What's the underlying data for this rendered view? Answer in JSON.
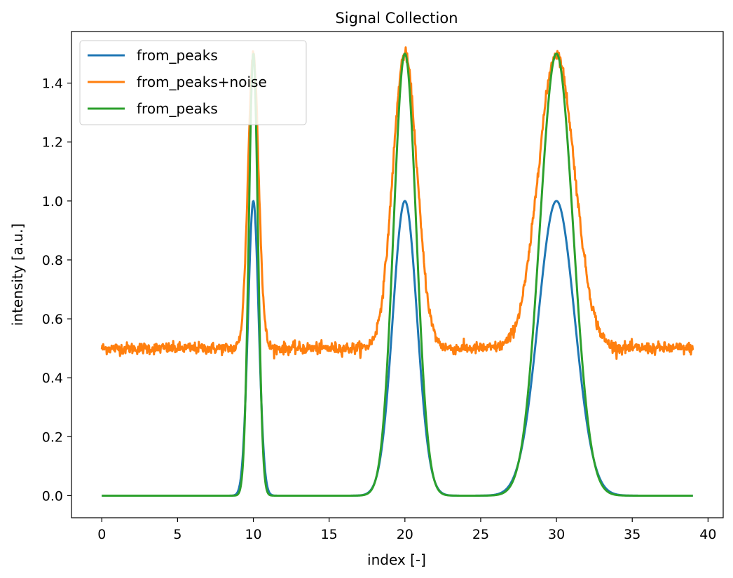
{
  "chart_data": {
    "type": "line",
    "title": "Signal Collection",
    "xlabel": "index [-]",
    "ylabel": "intensity [a.u.]",
    "xlim": [
      -2,
      41
    ],
    "ylim": [
      -0.075,
      1.575
    ],
    "x_range": [
      0,
      39
    ],
    "xticks": [
      0,
      5,
      10,
      15,
      20,
      25,
      30,
      35,
      40
    ],
    "yticks": [
      0.0,
      0.2,
      0.4,
      0.6,
      0.8,
      1.0,
      1.2,
      1.4
    ],
    "xtick_labels": [
      "0",
      "5",
      "10",
      "15",
      "20",
      "25",
      "30",
      "35",
      "40"
    ],
    "ytick_labels": [
      "0.0",
      "0.2",
      "0.4",
      "0.6",
      "0.8",
      "1.0",
      "1.2",
      "1.4"
    ],
    "grid": false,
    "legend_position": "top-left",
    "series": [
      {
        "name": "from_peaks",
        "color": "#1f77b4",
        "baseline": 0.0,
        "peaks": [
          {
            "center": 10,
            "amplitude": 1.0,
            "sigma": 0.35
          },
          {
            "center": 20,
            "amplitude": 1.0,
            "sigma": 0.8
          },
          {
            "center": 30,
            "amplitude": 1.0,
            "sigma": 1.2
          }
        ],
        "noise": 0
      },
      {
        "name": "from_peaks+noise",
        "color": "#ff7f0e",
        "baseline": 0.5,
        "peaks": [
          {
            "center": 10,
            "amplitude": 1.0,
            "sigma": 0.35
          },
          {
            "center": 20,
            "amplitude": 1.0,
            "sigma": 0.8
          },
          {
            "center": 30,
            "amplitude": 1.0,
            "sigma": 1.2
          }
        ],
        "noise": 0.01
      },
      {
        "name": "from_peaks",
        "color": "#2ca02c",
        "baseline": 0.0,
        "peaks": [
          {
            "center": 10,
            "amplitude": 1.5,
            "sigma": 0.3
          },
          {
            "center": 20,
            "amplitude": 1.5,
            "sigma": 0.75
          },
          {
            "center": 30,
            "amplitude": 1.5,
            "sigma": 1.1
          }
        ],
        "noise": 0
      }
    ]
  }
}
